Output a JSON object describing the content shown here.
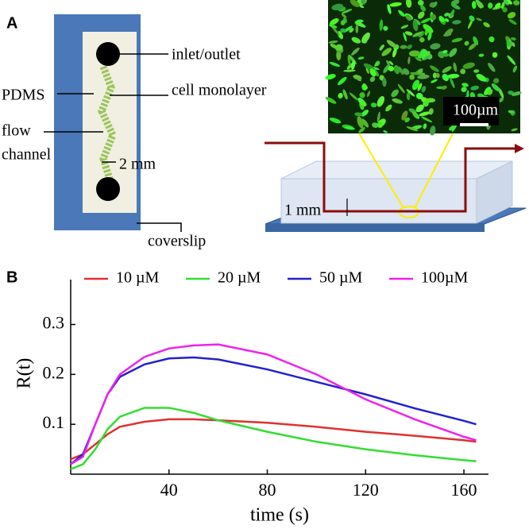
{
  "panel_a": {
    "label": "A",
    "inlet": "inlet/outlet",
    "pdms": "PDMS",
    "monolayer": "cell monolayer",
    "flow_channel": [
      "flow",
      "channel"
    ],
    "width": "2 mm",
    "coverslip": "coverslip",
    "scale_bar": "100µm",
    "height": "1 mm"
  },
  "chart_data": {
    "type": "line",
    "label": "B",
    "ylabel": "R(t)",
    "xlabel": "time (s)",
    "xlim": [
      0,
      170
    ],
    "ylim": [
      0,
      0.39
    ],
    "xticks": [
      40,
      80,
      120,
      160
    ],
    "yticks": [
      0.1,
      0.2,
      0.3
    ],
    "x": [
      0,
      5,
      10,
      15,
      20,
      30,
      40,
      50,
      60,
      80,
      100,
      120,
      140,
      160,
      165
    ],
    "series": [
      {
        "name": "10 µM",
        "color": "#e03030",
        "values": [
          0.03,
          0.04,
          0.06,
          0.08,
          0.095,
          0.105,
          0.11,
          0.11,
          0.108,
          0.103,
          0.095,
          0.085,
          0.077,
          0.068,
          0.065
        ]
      },
      {
        "name": "20 µM",
        "color": "#33dd33",
        "values": [
          0.01,
          0.02,
          0.05,
          0.09,
          0.115,
          0.133,
          0.133,
          0.123,
          0.108,
          0.085,
          0.065,
          0.05,
          0.038,
          0.028,
          0.026
        ]
      },
      {
        "name": "50 µM",
        "color": "#2222cc",
        "values": [
          0.02,
          0.04,
          0.1,
          0.16,
          0.195,
          0.22,
          0.232,
          0.234,
          0.23,
          0.21,
          0.185,
          0.16,
          0.132,
          0.107,
          0.1
        ]
      },
      {
        "name": "100µM",
        "color": "#ee22ee",
        "values": [
          0.02,
          0.035,
          0.1,
          0.16,
          0.2,
          0.235,
          0.252,
          0.258,
          0.26,
          0.24,
          0.2,
          0.15,
          0.11,
          0.075,
          0.068
        ]
      }
    ]
  }
}
